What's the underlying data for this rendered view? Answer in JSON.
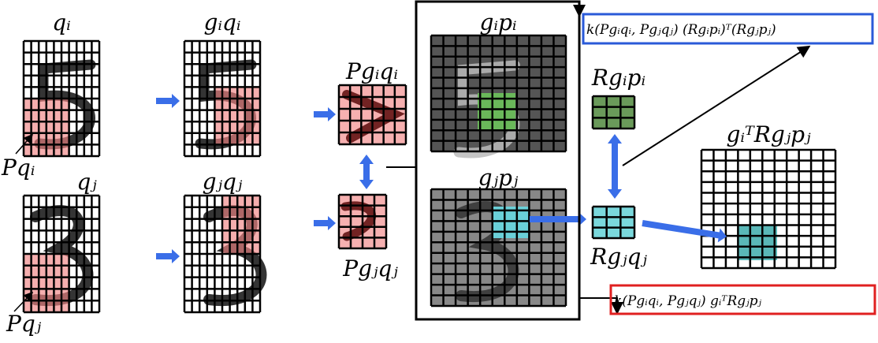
{
  "labels": {
    "q_i": "qᵢ",
    "gi_qi": "gᵢqᵢ",
    "P_gi_qi": "Pgᵢqᵢ",
    "P_qi": "Pqᵢ",
    "q_j": "qⱼ",
    "gj_qj": "gⱼqⱼ",
    "P_gj_qj": "Pgⱼqⱼ",
    "P_qj": "Pqⱼ",
    "gi_pi": "gᵢpᵢ",
    "R_gi_pi": "Rgᵢpᵢ",
    "gj_pj": "gⱼpⱼ",
    "R_gj_qj": "Rgⱼqⱼ",
    "giT_R_gj_pj": "gᵢᵀRgⱼpⱼ"
  },
  "formulas": {
    "blue": "k(Pgᵢqᵢ, Pgⱼqⱼ) (Rgᵢpᵢ)ᵀ(Rgⱼpⱼ)",
    "red": "k(Pgᵢqᵢ, Pgⱼqⱼ) gᵢᵀRgⱼpⱼ"
  }
}
